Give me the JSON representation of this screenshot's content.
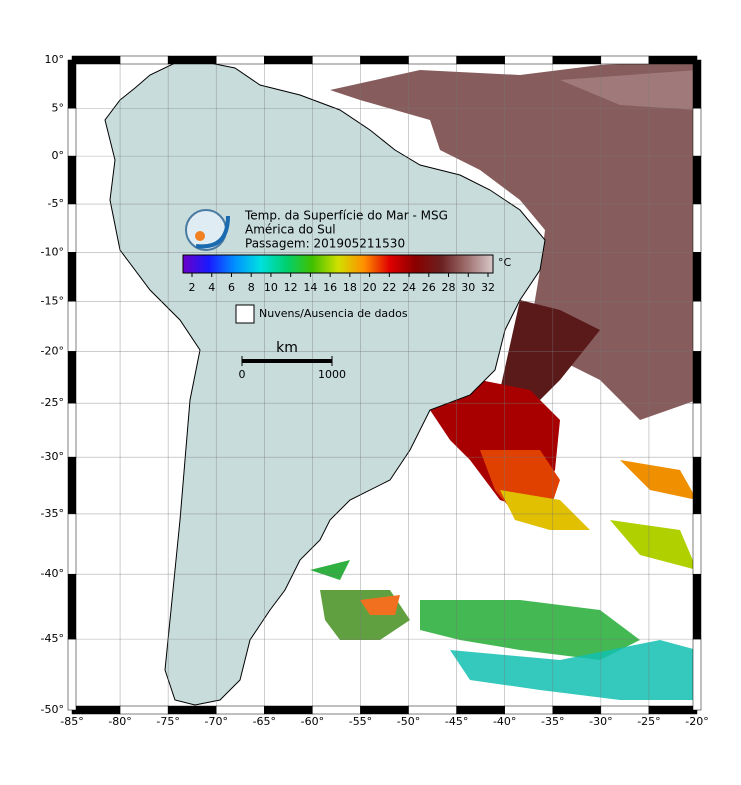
{
  "map": {
    "title_lines": [
      "Temp. da Superfície do Mar - MSG",
      "América do Sul",
      "Passagem: 201905211530"
    ],
    "colorbar": {
      "ticks": [
        2,
        4,
        6,
        8,
        10,
        12,
        14,
        16,
        18,
        20,
        22,
        24,
        26,
        28,
        30,
        32
      ],
      "unit": "°C",
      "colors": [
        "#6a00c8",
        "#1a1aff",
        "#0090ff",
        "#00e0e0",
        "#00d070",
        "#40c000",
        "#d0e000",
        "#ff9000",
        "#e00000",
        "#8a0000",
        "#6a2020",
        "#a07070",
        "#d8c8c8"
      ]
    },
    "legend": "Nuvens/Ausencia de dados",
    "scale": {
      "unit": "km",
      "ticks": [
        0,
        1000
      ]
    },
    "lon_ticks": [
      {
        "value": -85,
        "label": "-85°"
      },
      {
        "value": -80,
        "label": "-80°"
      },
      {
        "value": -75,
        "label": "-75°"
      },
      {
        "value": -70,
        "label": "-70°"
      },
      {
        "value": -65,
        "label": "-65°"
      },
      {
        "value": -60,
        "label": "-60°"
      },
      {
        "value": -55,
        "label": "-55°"
      },
      {
        "value": -50,
        "label": "-50°"
      },
      {
        "value": -45,
        "label": "-45°"
      },
      {
        "value": -40,
        "label": "-40°"
      },
      {
        "value": -35,
        "label": "-35°"
      },
      {
        "value": -30,
        "label": "-30°"
      },
      {
        "value": -25,
        "label": "-25°"
      },
      {
        "value": -20,
        "label": "-20°"
      }
    ],
    "lat_ticks": [
      {
        "value": 10,
        "label": "10°"
      },
      {
        "value": 5,
        "label": "5°"
      },
      {
        "value": 0,
        "label": "0°"
      },
      {
        "value": -5,
        "label": "-5°"
      },
      {
        "value": -10,
        "label": "-10°"
      },
      {
        "value": -15,
        "label": "-15°"
      },
      {
        "value": -20,
        "label": "-20°"
      },
      {
        "value": -25,
        "label": "-25°"
      },
      {
        "value": -30,
        "label": "-30°"
      },
      {
        "value": -35,
        "label": "-35°"
      },
      {
        "value": -40,
        "label": "-40°"
      },
      {
        "value": -45,
        "label": "-45°"
      },
      {
        "value": -50,
        "label": "-50°"
      }
    ]
  }
}
